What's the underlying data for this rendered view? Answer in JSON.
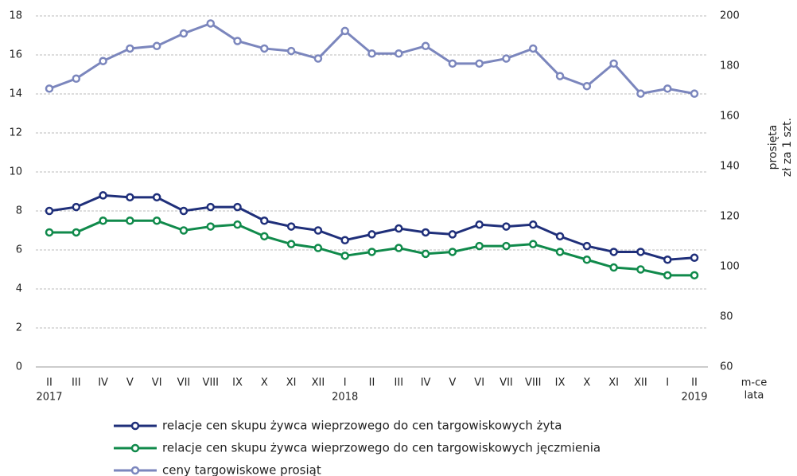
{
  "chart_data": {
    "type": "line",
    "categories": [
      "II",
      "III",
      "IV",
      "V",
      "VI",
      "VII",
      "VIII",
      "IX",
      "X",
      "XI",
      "XII",
      "I",
      "II",
      "III",
      "IV",
      "V",
      "VI",
      "VII",
      "VIII",
      "IX",
      "X",
      "XI",
      "XII",
      "I",
      "II"
    ],
    "years": [
      "2017",
      null,
      null,
      null,
      null,
      null,
      null,
      null,
      null,
      null,
      null,
      "2018",
      null,
      null,
      null,
      null,
      null,
      null,
      null,
      null,
      null,
      null,
      null,
      null,
      "2019"
    ],
    "xlabel": {
      "months": "m-ce",
      "years": "lata"
    },
    "y2label": [
      "prosięta",
      "zł za 1 szt."
    ],
    "ylim": [
      0,
      18
    ],
    "yticks": [
      0,
      2,
      4,
      6,
      8,
      10,
      12,
      14,
      16,
      18
    ],
    "y2lim": [
      60,
      200
    ],
    "y2ticks": [
      60,
      80,
      100,
      120,
      140,
      160,
      180,
      200
    ],
    "grid": true,
    "series": [
      {
        "name": "relacje cen skupu żywca wieprzowego do cen targowiskowych żyta",
        "color": "#1f2f7a",
        "values": [
          8.0,
          8.2,
          8.8,
          8.7,
          8.7,
          8.0,
          8.2,
          8.2,
          7.5,
          7.2,
          7.0,
          6.5,
          6.8,
          7.1,
          6.9,
          6.8,
          7.3,
          7.2,
          7.3,
          6.7,
          6.2,
          5.9,
          5.9,
          5.5,
          5.6
        ]
      },
      {
        "name": "relacje cen skupu żywca wieprzowego do cen targowiskowych jęczmienia",
        "color": "#108a4b",
        "values": [
          6.9,
          6.9,
          7.5,
          7.5,
          7.5,
          7.0,
          7.2,
          7.3,
          6.7,
          6.3,
          6.1,
          5.7,
          5.9,
          6.1,
          5.8,
          5.9,
          6.2,
          6.2,
          6.3,
          5.9,
          5.5,
          5.1,
          5.0,
          4.7,
          4.7
        ]
      },
      {
        "name": "ceny targowiskowe prosiąt",
        "color": "#7b86bd",
        "axis": "y2",
        "values": [
          171,
          175,
          182,
          187,
          188,
          193,
          197,
          190,
          187,
          186,
          183,
          194,
          185,
          185,
          188,
          181,
          181,
          183,
          187,
          176,
          172,
          181,
          169,
          171,
          169
        ]
      }
    ]
  }
}
